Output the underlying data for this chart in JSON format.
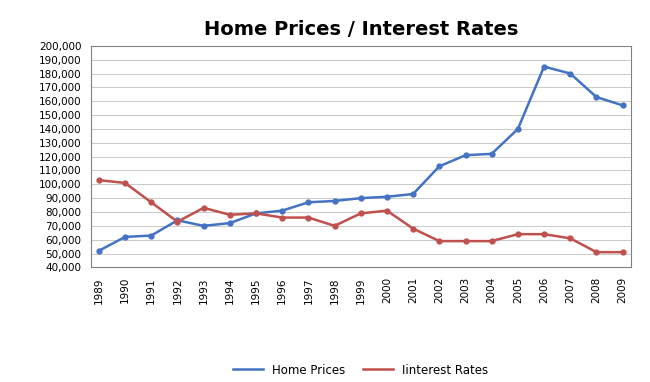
{
  "years": [
    1989,
    1990,
    1991,
    1992,
    1993,
    1994,
    1995,
    1996,
    1997,
    1998,
    1999,
    2000,
    2001,
    2002,
    2003,
    2004,
    2005,
    2006,
    2007,
    2008,
    2009
  ],
  "home_prices": [
    52000,
    62000,
    63000,
    74000,
    70000,
    72000,
    79000,
    81000,
    87000,
    88000,
    90000,
    91000,
    93000,
    113000,
    121000,
    122000,
    140000,
    185000,
    180000,
    163000,
    157000
  ],
  "interest_rates": [
    103000,
    101000,
    87000,
    73000,
    83000,
    78000,
    79000,
    76000,
    76000,
    70000,
    79000,
    81000,
    68000,
    59000,
    59000,
    59000,
    64000,
    64000,
    61000,
    51000,
    51000
  ],
  "home_prices_color": "#4472C4",
  "interest_rates_color": "#C0504D",
  "title": "Home Prices / Interest Rates",
  "title_fontsize": 14,
  "ylim_min": 40000,
  "ylim_max": 200000,
  "ytick_step": 10000,
  "background_color": "#FFFFFF",
  "grid_color": "#C0C0C0",
  "legend_labels": [
    "Home Prices",
    "Iinterest Rates"
  ],
  "marker": "o",
  "marker_size": 3.5,
  "line_width": 1.8,
  "border_color": "#808080"
}
